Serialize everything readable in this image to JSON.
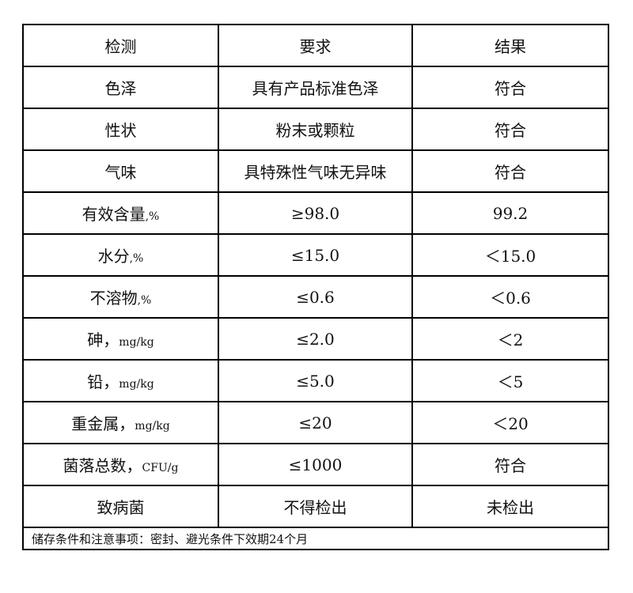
{
  "header": [
    "检测",
    "要求",
    "结果"
  ],
  "rows": [
    {
      "item": "色泽",
      "unit": "",
      "requirement": "具有产品标准色泽",
      "result": "符合"
    },
    {
      "item": "性状",
      "unit": "",
      "requirement": "粉末或颗粒",
      "result": "符合"
    },
    {
      "item": "气味",
      "unit": "",
      "requirement": "具特殊性气味无异味",
      "result": "符合"
    },
    {
      "item": "有效含量",
      "unit": ",%",
      "requirement": "≥98.0",
      "result": "99.2"
    },
    {
      "item": "水分",
      "unit": ",%",
      "requirement": "≤15.0",
      "result": "＜15.0"
    },
    {
      "item": "不溶物",
      "unit": ",%",
      "requirement": "≤0.6",
      "result": "＜0.6"
    },
    {
      "item": "砷，",
      "unit": "mg/kg",
      "requirement": "≤2.0",
      "result": "＜2"
    },
    {
      "item": "铅，",
      "unit": "mg/kg",
      "requirement": "≤5.0",
      "result": "＜5"
    },
    {
      "item": "重金属，",
      "unit": "mg/kg",
      "requirement": "≤20",
      "result": "＜20"
    },
    {
      "item": "菌落总数，",
      "unit": "CFU/g",
      "requirement": "≤1000",
      "result": "符合"
    },
    {
      "item": "致病菌",
      "unit": "",
      "requirement": "不得检出",
      "result": "未检出"
    }
  ],
  "footer": "储存条件和注意事项：密封、避光条件下效期24个月"
}
